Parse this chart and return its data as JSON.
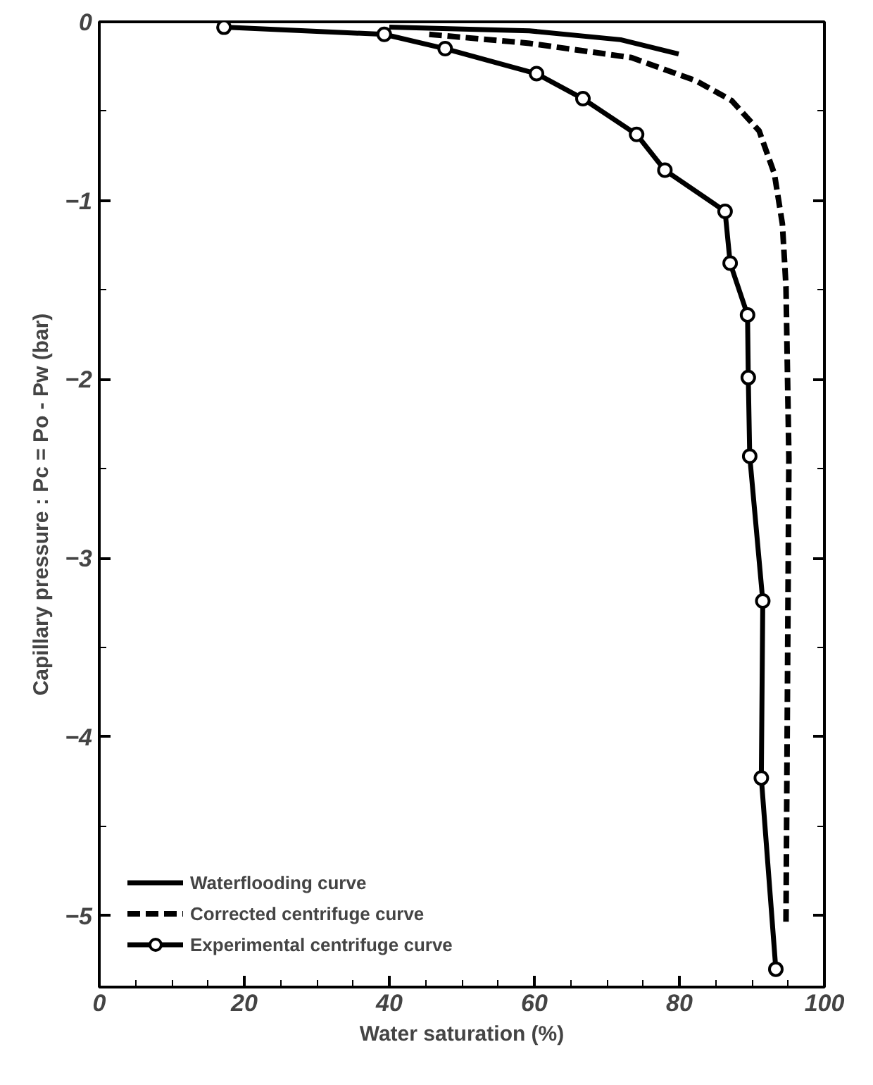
{
  "chart_data": {
    "type": "line",
    "xlabel": "Water saturation (%)",
    "ylabel": "Capillary pressure : Pc = Po - Pw (bar)",
    "xlim": [
      0,
      100
    ],
    "ylim": [
      -5.4,
      0
    ],
    "xticks": [
      0,
      20,
      40,
      60,
      80,
      100
    ],
    "yticks": [
      0,
      -1,
      -2,
      -3,
      -4,
      -5
    ],
    "grid": false,
    "legend": "bottom left",
    "series": [
      {
        "name": "Waterflooding curve",
        "color": "#000000",
        "line_style": "solid",
        "marker": "none",
        "x": [
          40,
          59.3,
          71.9,
          79.9
        ],
        "values": [
          -0.03,
          -0.05,
          -0.1,
          -0.18
        ]
      },
      {
        "name": "Corrected centrifuge curve",
        "color": "#000000",
        "line_style": "dashed",
        "marker": "none",
        "x": [
          45.5,
          59.3,
          73.4,
          82.3,
          87.2,
          91,
          93.1,
          94.2,
          94.7,
          95.1,
          94.7
        ],
        "values": [
          -0.07,
          -0.12,
          -0.2,
          -0.33,
          -0.44,
          -0.61,
          -0.85,
          -1.13,
          -1.48,
          -2.44,
          -5.05
        ]
      },
      {
        "name": "Experimental centrifuge curve",
        "color": "#000000",
        "line_style": "solid",
        "marker": "circle",
        "x": [
          17.2,
          39.3,
          47.7,
          60.3,
          66.7,
          74.1,
          78,
          86.3,
          87,
          89.4,
          89.5,
          89.7,
          91.5,
          91.3,
          93.3
        ],
        "values": [
          -0.03,
          -0.07,
          -0.15,
          -0.29,
          -0.43,
          -0.63,
          -0.83,
          -1.06,
          -1.35,
          -1.64,
          -1.99,
          -2.43,
          -3.24,
          -4.23,
          -5.3
        ]
      }
    ]
  }
}
